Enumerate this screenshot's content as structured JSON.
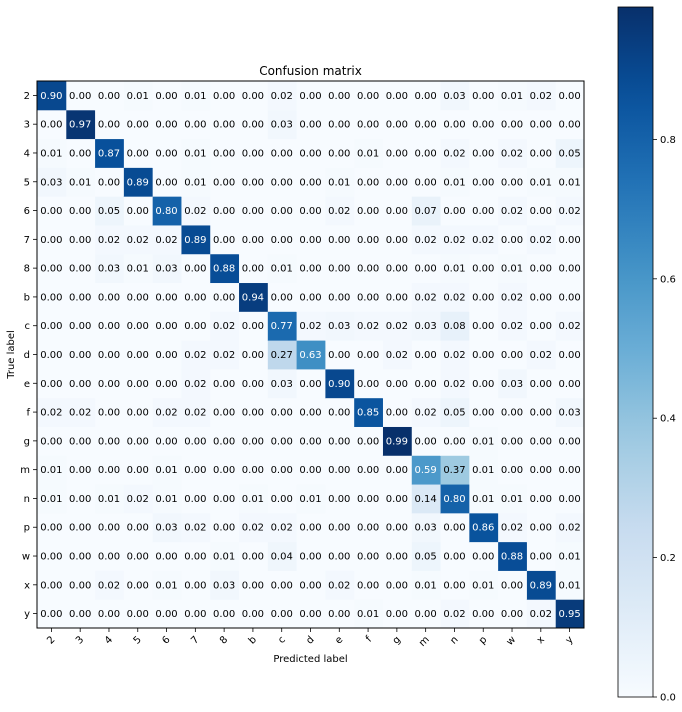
{
  "chart_data": {
    "type": "heatmap",
    "title": "Confusion matrix",
    "xlabel": "Predicted label",
    "ylabel": "True label",
    "labels": [
      "2",
      "3",
      "4",
      "5",
      "6",
      "7",
      "8",
      "b",
      "c",
      "d",
      "e",
      "f",
      "g",
      "m",
      "n",
      "p",
      "w",
      "x",
      "y"
    ],
    "matrix": [
      [
        "0.90",
        "0.00",
        "0.00",
        "0.01",
        "0.00",
        "0.01",
        "0.00",
        "0.00",
        "0.02",
        "0.00",
        "0.00",
        "0.00",
        "0.00",
        "0.00",
        "0.03",
        "0.00",
        "0.01",
        "0.02",
        "0.00"
      ],
      [
        "0.00",
        "0.97",
        "0.00",
        "0.00",
        "0.00",
        "0.00",
        "0.00",
        "0.00",
        "0.03",
        "0.00",
        "0.00",
        "0.00",
        "0.00",
        "0.00",
        "0.00",
        "0.00",
        "0.00",
        "0.00",
        "0.00"
      ],
      [
        "0.01",
        "0.00",
        "0.87",
        "0.00",
        "0.00",
        "0.01",
        "0.00",
        "0.00",
        "0.00",
        "0.00",
        "0.00",
        "0.01",
        "0.00",
        "0.00",
        "0.02",
        "0.00",
        "0.02",
        "0.00",
        "0.05"
      ],
      [
        "0.03",
        "0.01",
        "0.00",
        "0.89",
        "0.00",
        "0.01",
        "0.00",
        "0.00",
        "0.00",
        "0.00",
        "0.01",
        "0.00",
        "0.00",
        "0.00",
        "0.01",
        "0.00",
        "0.00",
        "0.01",
        "0.01"
      ],
      [
        "0.00",
        "0.00",
        "0.05",
        "0.00",
        "0.80",
        "0.02",
        "0.00",
        "0.00",
        "0.00",
        "0.00",
        "0.02",
        "0.00",
        "0.00",
        "0.07",
        "0.00",
        "0.00",
        "0.02",
        "0.00",
        "0.02"
      ],
      [
        "0.00",
        "0.00",
        "0.02",
        "0.02",
        "0.02",
        "0.89",
        "0.00",
        "0.00",
        "0.00",
        "0.00",
        "0.00",
        "0.00",
        "0.00",
        "0.02",
        "0.02",
        "0.02",
        "0.00",
        "0.02",
        "0.00"
      ],
      [
        "0.00",
        "0.00",
        "0.03",
        "0.01",
        "0.03",
        "0.00",
        "0.88",
        "0.00",
        "0.01",
        "0.00",
        "0.00",
        "0.00",
        "0.00",
        "0.00",
        "0.01",
        "0.00",
        "0.01",
        "0.00",
        "0.00"
      ],
      [
        "0.00",
        "0.00",
        "0.00",
        "0.00",
        "0.00",
        "0.00",
        "0.00",
        "0.94",
        "0.00",
        "0.00",
        "0.00",
        "0.00",
        "0.00",
        "0.02",
        "0.02",
        "0.00",
        "0.02",
        "0.00",
        "0.00"
      ],
      [
        "0.00",
        "0.00",
        "0.00",
        "0.00",
        "0.00",
        "0.00",
        "0.02",
        "0.00",
        "0.77",
        "0.02",
        "0.03",
        "0.02",
        "0.02",
        "0.03",
        "0.08",
        "0.00",
        "0.02",
        "0.00",
        "0.02"
      ],
      [
        "0.00",
        "0.00",
        "0.00",
        "0.00",
        "0.00",
        "0.02",
        "0.02",
        "0.00",
        "0.27",
        "0.63",
        "0.00",
        "0.00",
        "0.02",
        "0.00",
        "0.02",
        "0.00",
        "0.00",
        "0.02",
        "0.00"
      ],
      [
        "0.00",
        "0.00",
        "0.00",
        "0.00",
        "0.00",
        "0.02",
        "0.00",
        "0.00",
        "0.03",
        "0.00",
        "0.90",
        "0.00",
        "0.00",
        "0.00",
        "0.02",
        "0.00",
        "0.03",
        "0.00",
        "0.00"
      ],
      [
        "0.02",
        "0.02",
        "0.00",
        "0.00",
        "0.02",
        "0.02",
        "0.00",
        "0.00",
        "0.00",
        "0.00",
        "0.00",
        "0.85",
        "0.00",
        "0.02",
        "0.05",
        "0.00",
        "0.00",
        "0.00",
        "0.03"
      ],
      [
        "0.00",
        "0.00",
        "0.00",
        "0.00",
        "0.00",
        "0.00",
        "0.00",
        "0.00",
        "0.00",
        "0.00",
        "0.00",
        "0.00",
        "0.99",
        "0.00",
        "0.00",
        "0.01",
        "0.00",
        "0.00",
        "0.00"
      ],
      [
        "0.01",
        "0.00",
        "0.00",
        "0.00",
        "0.01",
        "0.00",
        "0.00",
        "0.00",
        "0.00",
        "0.00",
        "0.00",
        "0.00",
        "0.00",
        "0.59",
        "0.37",
        "0.01",
        "0.00",
        "0.00",
        "0.00"
      ],
      [
        "0.01",
        "0.00",
        "0.01",
        "0.02",
        "0.01",
        "0.00",
        "0.00",
        "0.01",
        "0.00",
        "0.01",
        "0.00",
        "0.00",
        "0.00",
        "0.14",
        "0.80",
        "0.01",
        "0.01",
        "0.00",
        "0.00"
      ],
      [
        "0.00",
        "0.00",
        "0.00",
        "0.00",
        "0.03",
        "0.02",
        "0.00",
        "0.02",
        "0.02",
        "0.00",
        "0.00",
        "0.00",
        "0.00",
        "0.03",
        "0.00",
        "0.86",
        "0.02",
        "0.00",
        "0.02"
      ],
      [
        "0.00",
        "0.00",
        "0.00",
        "0.00",
        "0.00",
        "0.00",
        "0.01",
        "0.00",
        "0.04",
        "0.00",
        "0.00",
        "0.00",
        "0.00",
        "0.05",
        "0.00",
        "0.00",
        "0.88",
        "0.00",
        "0.01"
      ],
      [
        "0.00",
        "0.00",
        "0.02",
        "0.00",
        "0.01",
        "0.00",
        "0.03",
        "0.00",
        "0.00",
        "0.00",
        "0.02",
        "0.00",
        "0.00",
        "0.01",
        "0.00",
        "0.01",
        "0.00",
        "0.89",
        "0.01"
      ],
      [
        "0.00",
        "0.00",
        "0.00",
        "0.00",
        "0.00",
        "0.00",
        "0.00",
        "0.00",
        "0.00",
        "0.00",
        "0.00",
        "0.01",
        "0.00",
        "0.00",
        "0.02",
        "0.00",
        "0.00",
        "0.02",
        "0.95"
      ]
    ],
    "colorbar": {
      "ticks": [
        "0.0",
        "0.2",
        "0.4",
        "0.6",
        "0.8"
      ],
      "range": [
        0,
        0.99
      ],
      "colormap": "Blues"
    },
    "colors": {
      "high_text": "#ffffff",
      "low_text": "#000000"
    }
  }
}
